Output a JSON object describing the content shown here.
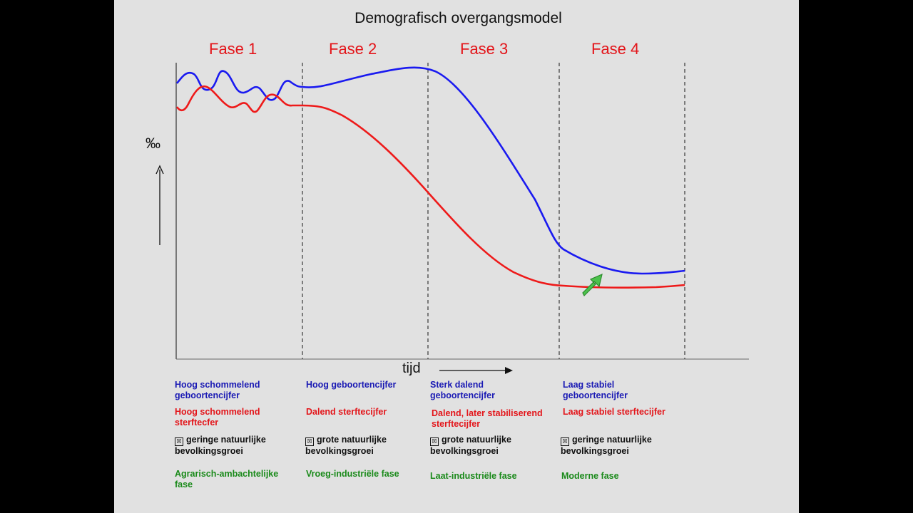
{
  "title": "Demografisch overgangsmodel",
  "phases": [
    "Fase 1",
    "Fase 2",
    "Fase 3",
    "Fase 4"
  ],
  "y_axis_label": "‰",
  "x_axis_label": "tijd",
  "colors": {
    "birth_rate": "#1a1af0",
    "death_rate": "#ee1a1a",
    "phase_text": "#e3151a",
    "economy_text": "#1a8a1a"
  },
  "arrow_icon": "green-arrow-up-right",
  "columns": [
    {
      "birth": "Hoog schommelend geboortencijfer",
      "death": "Hoog schommelend sterftecfer",
      "growth_icon": "☒",
      "growth": "geringe natuurlijke bevolkingsgroei",
      "economy": "Agrarisch-ambachtelijke fase"
    },
    {
      "birth": "Hoog geboortencijfer",
      "death": "Dalend sterftecijfer",
      "growth_icon": "☒",
      "growth": "grote natuurlijke bevolkingsgroei",
      "economy": "Vroeg-industriële fase"
    },
    {
      "birth": "Sterk dalend geboortencijfer",
      "death": "Dalend, later stabiliserend sterftecijfer",
      "growth_icon": "☒",
      "growth": "grote natuurlijke bevolkingsgroei",
      "economy": "Laat-industriële fase"
    },
    {
      "birth": "Laag stabiel geboortencijfer",
      "death": "Laag stabiel sterftecijfer",
      "growth_icon": "☒",
      "growth": "geringe natuurlijke bevolkingsgroei",
      "economy": "Moderne fase"
    }
  ]
}
